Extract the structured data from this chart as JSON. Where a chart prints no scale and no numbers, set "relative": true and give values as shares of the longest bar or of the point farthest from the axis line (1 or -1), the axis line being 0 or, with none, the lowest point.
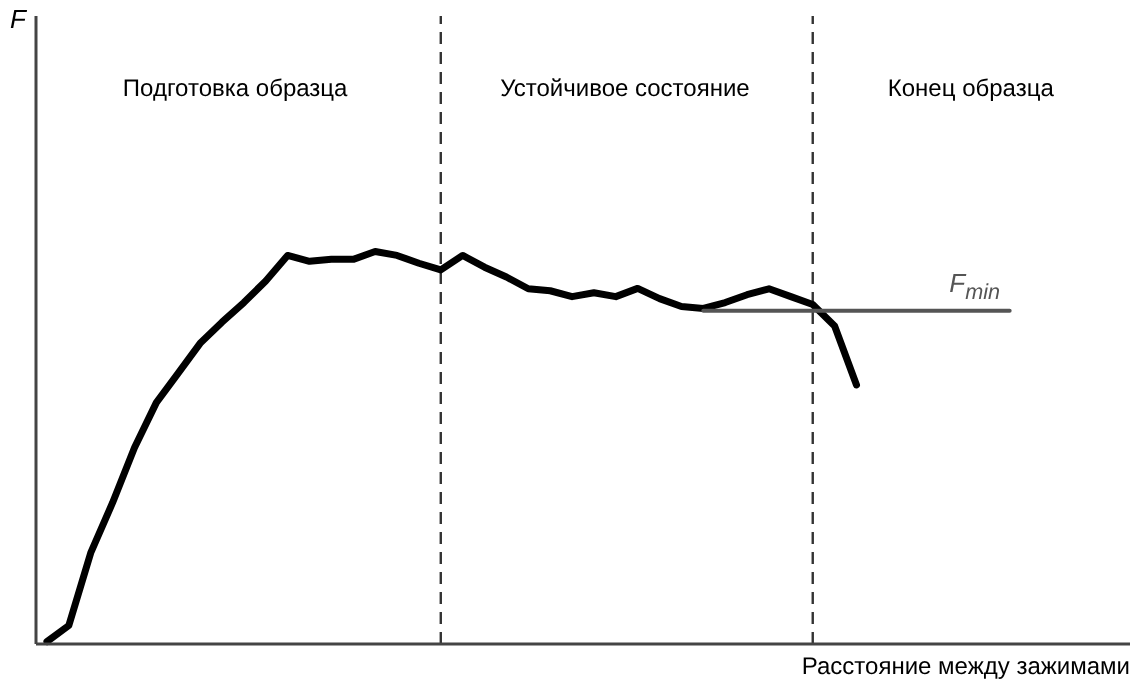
{
  "chart_data": {
    "type": "line",
    "relative": true,
    "xlabel": "Расстояние между зажимами",
    "marker": "none",
    "categories": [
      null,
      null,
      null,
      null,
      null,
      null,
      null,
      null,
      null,
      null,
      null,
      null,
      null,
      null,
      null,
      null,
      null,
      null,
      null,
      null,
      null,
      null,
      null,
      null,
      null,
      null,
      null,
      null,
      null,
      null,
      null,
      null,
      null,
      null,
      null,
      null,
      null,
      null,
      null,
      null,
      null,
      null,
      null,
      null,
      null,
      null,
      null,
      null,
      null,
      null
    ],
    "annotations": [
      "Подготовка образца",
      "Устойчивое состояние",
      "Конец образца",
      "F"
    ],
    "series": [
      {
        "color": "#000000",
        "values": [
          0.006,
          0.047,
          0.232,
          0.36,
          0.5,
          0.615,
          0.69,
          0.766,
          0.82,
          0.87,
          0.925,
          0.99,
          0.975,
          0.98,
          0.98,
          1,
          0.99,
          0.97,
          0.953,
          0.99,
          0.96,
          0.935,
          0.905,
          0.9,
          0.885,
          0.895,
          0.885,
          0.906,
          0.88,
          0.86,
          0.855,
          0.87,
          0.89,
          0.905,
          0.885,
          0.865,
          0.81,
          0.66,
          null,
          null,
          null,
          null,
          null,
          null,
          null,
          null,
          null,
          null,
          null,
          null
        ]
      },
      {
        "name": "F$_{min}$",
        "color": "#555555",
        "values": [
          null,
          null,
          null,
          null,
          null,
          null,
          null,
          null,
          null,
          null,
          null,
          null,
          null,
          null,
          null,
          null,
          null,
          null,
          null,
          null,
          null,
          null,
          null,
          null,
          null,
          null,
          null,
          null,
          null,
          null,
          0.849,
          0.849,
          0.849,
          0.849,
          0.849,
          0.849,
          0.849,
          0.849,
          0.849,
          0.849,
          0.849,
          0.849,
          0.849,
          0.849,
          0.849,
          null,
          null,
          null,
          null,
          null
        ]
      }
    ]
  }
}
